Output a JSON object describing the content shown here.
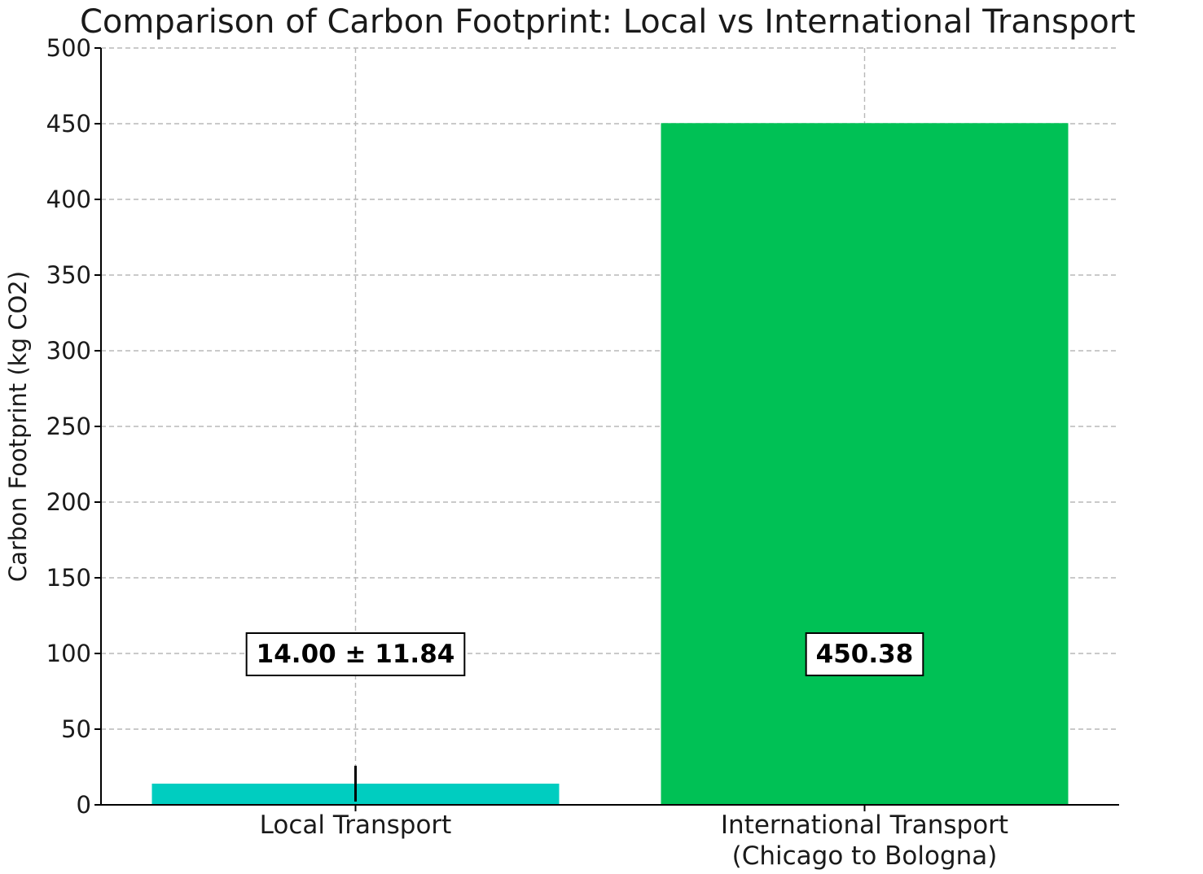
{
  "chart_data": {
    "type": "bar",
    "title": "Comparison of Carbon Footprint: Local vs International Transport",
    "xlabel": "",
    "ylabel": "Carbon Footprint (kg CO2)",
    "ylim": [
      0,
      500
    ],
    "yticks": [
      0,
      50,
      100,
      150,
      200,
      250,
      300,
      350,
      400,
      450,
      500
    ],
    "grid": true,
    "categories": [
      [
        "Local Transport"
      ],
      [
        "International Transport",
        "(Chicago to Bologna)"
      ]
    ],
    "values": [
      14.0,
      450.38
    ],
    "errors": [
      11.84,
      null
    ],
    "colors": [
      "#00CDC0",
      "#00C155"
    ],
    "data_labels": [
      "14.00 ± 11.84",
      "450.38"
    ],
    "data_label_y": 100
  }
}
